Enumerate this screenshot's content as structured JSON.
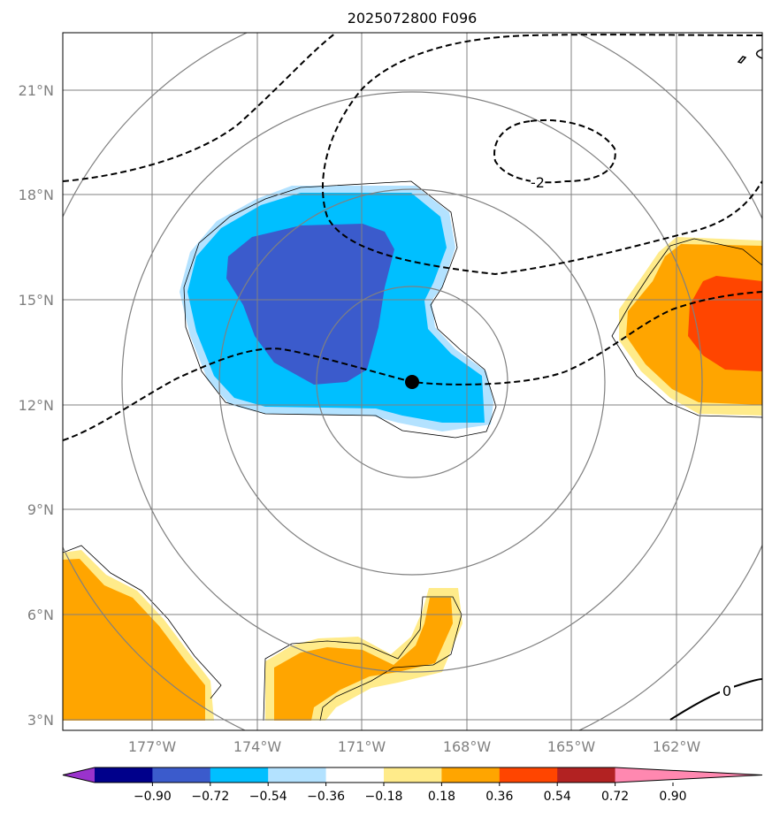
{
  "title": "2025072800 F096",
  "lat_labels": [
    "21°N",
    "18°N",
    "15°N",
    "12°N",
    "9°N",
    "6°N",
    "3°N"
  ],
  "lon_labels": [
    "177°W",
    "174°W",
    "171°W",
    "168°W",
    "165°W",
    "162°W"
  ],
  "contour_labels": {
    "dashed": "-2",
    "solid": "0"
  },
  "colorbar": {
    "ticks": [
      "−0.90",
      "−0.72",
      "−0.54",
      "−0.36",
      "−0.18",
      "0.18",
      "0.36",
      "0.54",
      "0.72",
      "0.90"
    ],
    "colors": [
      "#9a33cc",
      "#00008b",
      "#3b5bcc",
      "#00bfff",
      "#b3e2ff",
      "#ffffff",
      "#ffeb8a",
      "#ffa500",
      "#ff4500",
      "#b22222",
      "#ff88b0"
    ]
  },
  "colors": {
    "grid": "#808080",
    "blue_light": "#b3e2ff",
    "blue": "#00bfff",
    "blue_dark": "#3b5bcc",
    "yellow": "#ffeb8a",
    "orange": "#ffa500",
    "red": "#ff4500"
  }
}
